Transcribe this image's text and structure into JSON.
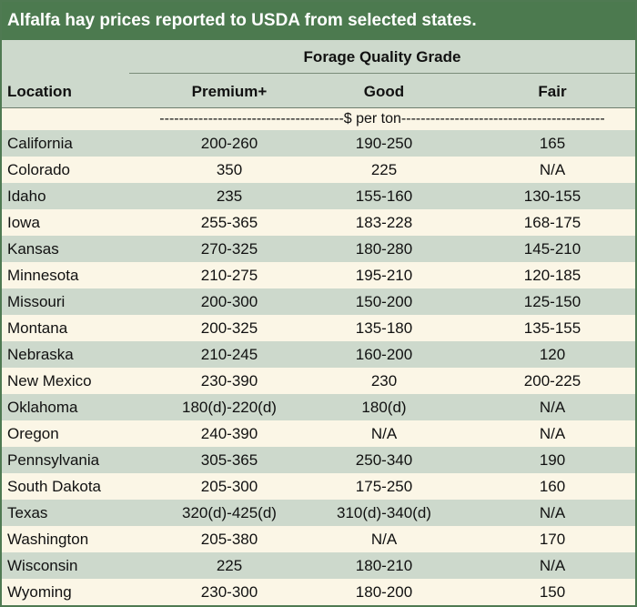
{
  "title": "Alfalfa hay prices reported to USDA from selected states.",
  "header": {
    "grade_title": "Forage Quality Grade",
    "location": "Location",
    "premium": "Premium+",
    "good": "Good",
    "fair": "Fair",
    "units": "--------------------------------------$ per ton------------------------------------------"
  },
  "rows": [
    {
      "location": "California",
      "premium": "200-260",
      "good": "190-250",
      "fair": "165"
    },
    {
      "location": "Colorado",
      "premium": "350",
      "good": "225",
      "fair": "N/A"
    },
    {
      "location": "Idaho",
      "premium": "235",
      "good": "155-160",
      "fair": "130-155"
    },
    {
      "location": "Iowa",
      "premium": "255-365",
      "good": "183-228",
      "fair": "168-175"
    },
    {
      "location": "Kansas",
      "premium": "270-325",
      "good": "180-280",
      "fair": "145-210"
    },
    {
      "location": "Minnesota",
      "premium": "210-275",
      "good": "195-210",
      "fair": "120-185"
    },
    {
      "location": "Missouri",
      "premium": "200-300",
      "good": "150-200",
      "fair": "125-150"
    },
    {
      "location": "Montana",
      "premium": "200-325",
      "good": "135-180",
      "fair": "135-155"
    },
    {
      "location": "Nebraska",
      "premium": "210-245",
      "good": "160-200",
      "fair": "120"
    },
    {
      "location": "New Mexico",
      "premium": "230-390",
      "good": "230",
      "fair": "200-225"
    },
    {
      "location": "Oklahoma",
      "premium": "180(d)-220(d)",
      "good": "180(d)",
      "fair": "N/A"
    },
    {
      "location": "Oregon",
      "premium": "240-390",
      "good": "N/A",
      "fair": "N/A"
    },
    {
      "location": "Pennsylvania",
      "premium": "305-365",
      "good": "250-340",
      "fair": "190"
    },
    {
      "location": "South Dakota",
      "premium": "205-300",
      "good": "175-250",
      "fair": "160"
    },
    {
      "location": "Texas",
      "premium": "320(d)-425(d)",
      "good": "310(d)-340(d)",
      "fair": "N/A"
    },
    {
      "location": "Washington",
      "premium": "205-380",
      "good": "N/A",
      "fair": "170"
    },
    {
      "location": "Wisconsin",
      "premium": "225",
      "good": "180-210",
      "fair": "N/A"
    },
    {
      "location": "Wyoming",
      "premium": "230-300",
      "good": "180-200",
      "fair": "150"
    }
  ],
  "colors": {
    "title_bg": "#4c7a4f",
    "shade_row": "#cdd9cc",
    "plain_row": "#fbf6e6"
  }
}
